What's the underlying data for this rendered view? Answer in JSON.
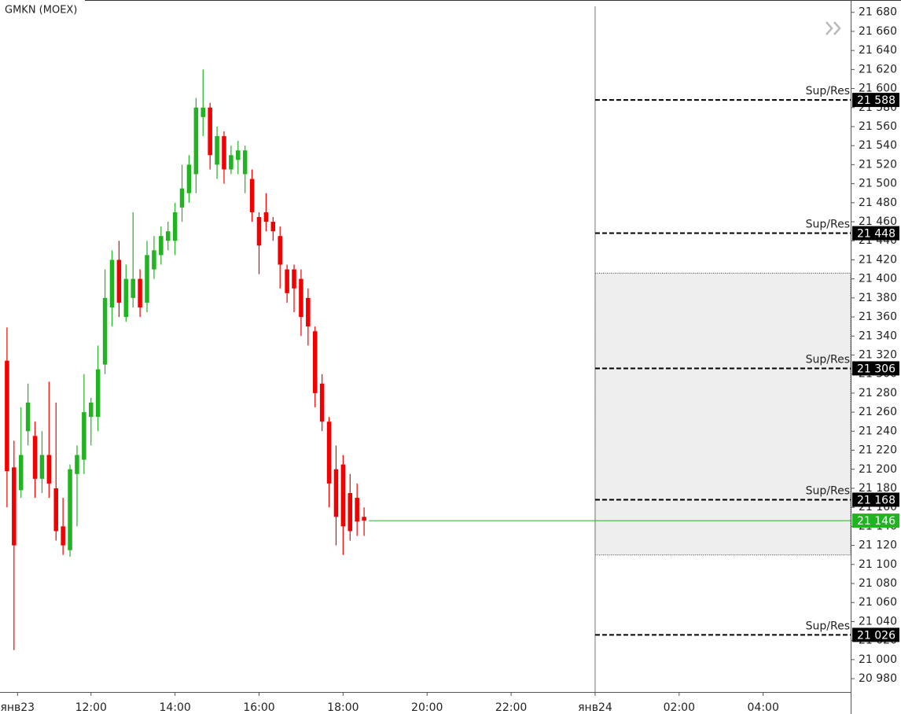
{
  "chart_data": {
    "type": "candlestick",
    "title": "GMKN (MOEX)",
    "x": [
      600,
      610,
      620,
      630,
      640,
      650,
      660,
      670,
      680,
      690,
      700,
      710,
      720,
      730,
      740,
      750,
      760,
      770,
      780,
      790,
      800,
      810,
      820,
      830,
      840,
      850,
      860,
      870,
      880,
      890,
      900,
      910,
      920,
      930,
      940,
      950,
      960,
      970,
      980,
      990,
      1000,
      1010,
      1020,
      1030,
      1040,
      1050,
      1060,
      1070,
      1080,
      1090,
      1100,
      1110
    ],
    "open": [
      21314,
      21202,
      21178,
      21240,
      21235,
      21190,
      21215,
      21180,
      21140,
      21115,
      21195,
      21210,
      21255,
      21255,
      21310,
      21370,
      21420,
      21360,
      21380,
      21400,
      21375,
      21410,
      21425,
      21440,
      21440,
      21475,
      21490,
      21510,
      21570,
      21580,
      21520,
      21550,
      21515,
      21525,
      21510,
      21505,
      21465,
      21470,
      21460,
      21445,
      21410,
      21410,
      21400,
      21380,
      21345,
      21290,
      21250,
      21200,
      21205,
      21175,
      21170,
      21150
    ],
    "high": [
      21349,
      21230,
      21265,
      21290,
      21250,
      21240,
      21292,
      21270,
      21170,
      21205,
      21225,
      21300,
      21275,
      21330,
      21410,
      21430,
      21440,
      21415,
      21470,
      21410,
      21440,
      21445,
      21455,
      21460,
      21480,
      21520,
      21530,
      21590,
      21620,
      21585,
      21560,
      21555,
      21540,
      21545,
      21540,
      21515,
      21470,
      21490,
      21465,
      21455,
      21415,
      21415,
      21410,
      21390,
      21350,
      21300,
      21255,
      21225,
      21215,
      21195,
      21185,
      21160
    ],
    "low": [
      21160,
      21010,
      21170,
      21225,
      21170,
      21175,
      21170,
      21125,
      21110,
      21108,
      21140,
      21195,
      21225,
      21240,
      21300,
      21350,
      21360,
      21355,
      21370,
      21360,
      21365,
      21400,
      21415,
      21430,
      21425,
      21460,
      21480,
      21490,
      21550,
      21515,
      21505,
      21500,
      21510,
      21510,
      21490,
      21460,
      21405,
      21450,
      21440,
      21390,
      21375,
      21365,
      21340,
      21330,
      21265,
      21240,
      21160,
      21120,
      21110,
      21125,
      21130,
      21130
    ],
    "close": [
      21198,
      21120,
      21215,
      21270,
      21190,
      21215,
      21185,
      21135,
      21120,
      21200,
      21215,
      21260,
      21270,
      21305,
      21380,
      21420,
      21375,
      21400,
      21400,
      21370,
      21425,
      21430,
      21445,
      21450,
      21470,
      21495,
      21520,
      21580,
      21580,
      21530,
      21550,
      21515,
      21530,
      21535,
      21535,
      21470,
      21435,
      21460,
      21450,
      21415,
      21385,
      21390,
      21360,
      21350,
      21280,
      21250,
      21185,
      21150,
      21140,
      21135,
      21145,
      21146
    ],
    "up_color": "#22b322",
    "down_color": "#f20000",
    "xlim": [
      590,
      1805
    ],
    "xticks": [
      {
        "value": 615,
        "label": "янв23"
      },
      {
        "value": 720,
        "label": "12:00"
      },
      {
        "value": 840,
        "label": "14:00"
      },
      {
        "value": 960,
        "label": "16:00"
      },
      {
        "value": 1080,
        "label": "18:00"
      },
      {
        "value": 1200,
        "label": "20:00"
      },
      {
        "value": 1320,
        "label": "22:00"
      },
      {
        "value": 1440,
        "label": "янв24"
      },
      {
        "value": 1560,
        "label": "02:00"
      },
      {
        "value": 1680,
        "label": "04:00"
      }
    ],
    "ylim": [
      20966,
      21693
    ],
    "yticks": [
      {
        "value": 21680,
        "label": "21 680"
      },
      {
        "value": 21660,
        "label": "21 660"
      },
      {
        "value": 21640,
        "label": "21 640"
      },
      {
        "value": 21620,
        "label": "21 620"
      },
      {
        "value": 21600,
        "label": "21 600"
      },
      {
        "value": 21580,
        "label": "21 580"
      },
      {
        "value": 21560,
        "label": "21 560"
      },
      {
        "value": 21540,
        "label": "21 540"
      },
      {
        "value": 21520,
        "label": "21 520"
      },
      {
        "value": 21500,
        "label": "21 500"
      },
      {
        "value": 21480,
        "label": "21 480"
      },
      {
        "value": 21460,
        "label": "21 460"
      },
      {
        "value": 21440,
        "label": "21 440"
      },
      {
        "value": 21420,
        "label": "21 420"
      },
      {
        "value": 21400,
        "label": "21 400"
      },
      {
        "value": 21380,
        "label": "21 380"
      },
      {
        "value": 21360,
        "label": "21 360"
      },
      {
        "value": 21340,
        "label": "21 340"
      },
      {
        "value": 21320,
        "label": "21 320"
      },
      {
        "value": 21300,
        "label": "21 300"
      },
      {
        "value": 21280,
        "label": "21 280"
      },
      {
        "value": 21260,
        "label": "21 260"
      },
      {
        "value": 21240,
        "label": "21 240"
      },
      {
        "value": 21220,
        "label": "21 220"
      },
      {
        "value": 21200,
        "label": "21 200"
      },
      {
        "value": 21180,
        "label": "21 180"
      },
      {
        "value": 21160,
        "label": "21 160"
      },
      {
        "value": 21140,
        "label": "21 140"
      },
      {
        "value": 21120,
        "label": "21 120"
      },
      {
        "value": 21100,
        "label": "21 100"
      },
      {
        "value": 21080,
        "label": "21 080"
      },
      {
        "value": 21060,
        "label": "21 060"
      },
      {
        "value": 21040,
        "label": "21 040"
      },
      {
        "value": 21020,
        "label": "21 020"
      },
      {
        "value": 21000,
        "label": "21 000"
      },
      {
        "value": 20980,
        "label": "20 980"
      }
    ],
    "divider": 1440,
    "zone": {
      "low": 21110,
      "high": 21406
    },
    "levels": [
      {
        "name": "Sup/Res",
        "value": 21588,
        "label": "21 588"
      },
      {
        "name": "Sup/Res",
        "value": 21448,
        "label": "21 448"
      },
      {
        "name": "Sup/Res",
        "value": 21306,
        "label": "21 306"
      },
      {
        "name": "Sup/Res",
        "value": 21168,
        "label": "21 168"
      },
      {
        "name": "Sup/Res",
        "value": 21026,
        "label": "21 026"
      }
    ],
    "last_price": {
      "value": 21146,
      "label": "21 146",
      "color": "#22b322"
    }
  }
}
